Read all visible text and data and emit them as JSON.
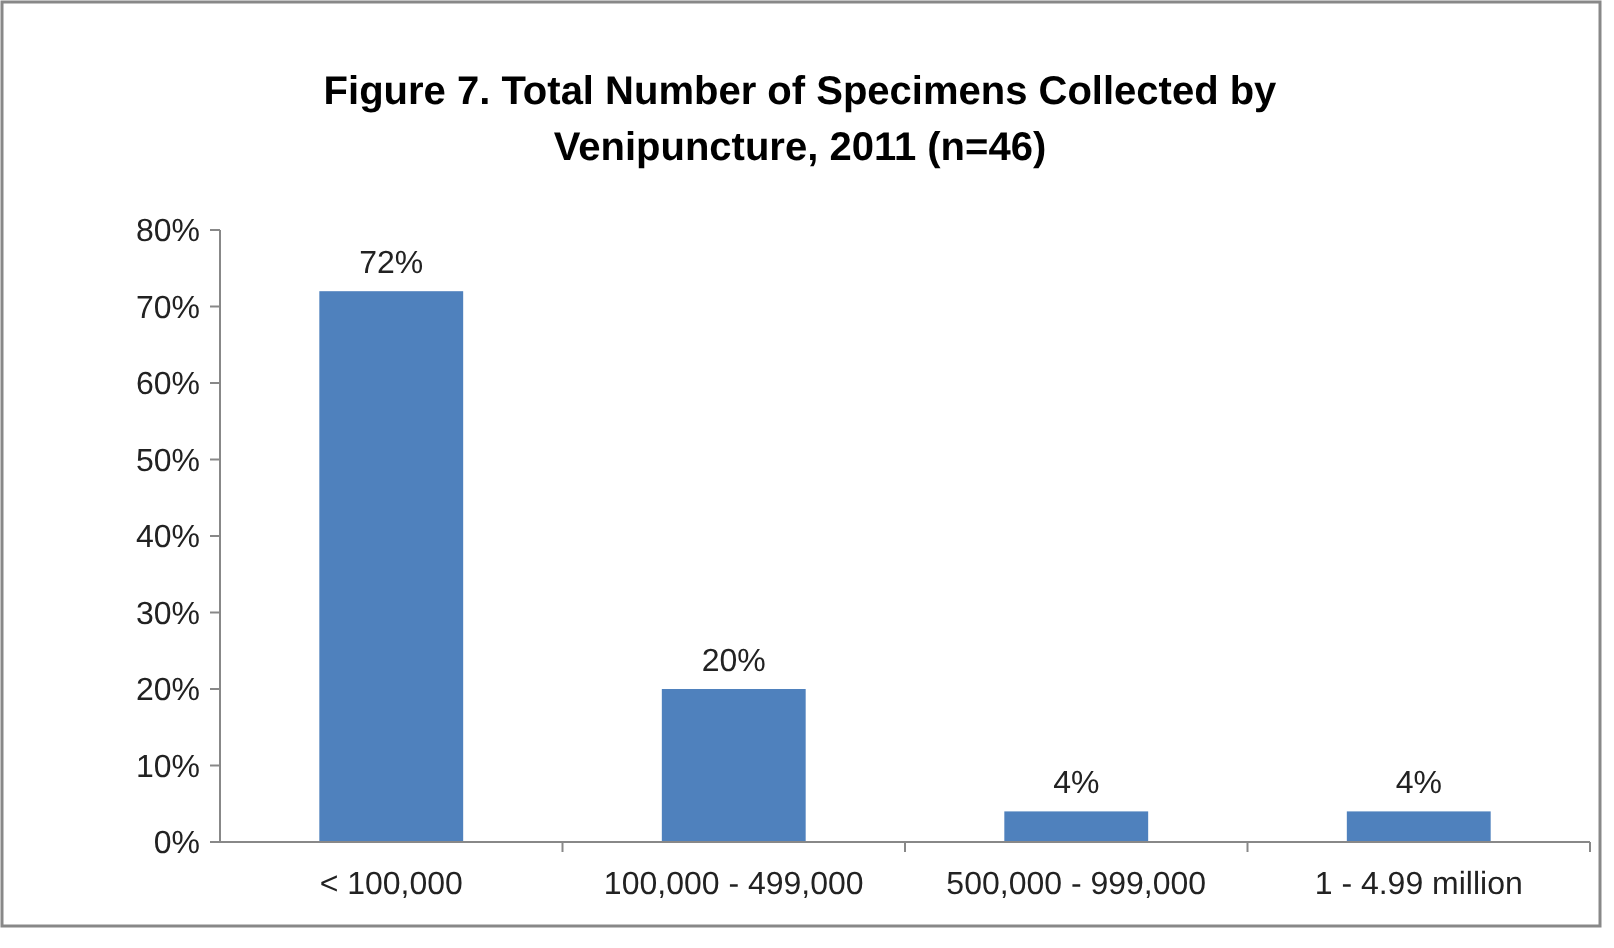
{
  "chart_data": {
    "type": "bar",
    "title": "Figure 7. Total Number of Specimens Collected by Venipuncture, 2011 (n=46)",
    "categories": [
      "< 100,000",
      "100,000 - 499,000",
      "500,000 - 999,000",
      "1 - 4.99 million"
    ],
    "values": [
      72,
      20,
      4,
      4
    ],
    "value_labels": [
      "72%",
      "20%",
      "4%",
      "4%"
    ],
    "color": "#4f81bd",
    "ylim": [
      0,
      80
    ],
    "yticks": [
      {
        "value": 0,
        "label": "0%"
      },
      {
        "value": 10,
        "label": "10%"
      },
      {
        "value": 20,
        "label": "20%"
      },
      {
        "value": 30,
        "label": "30%"
      },
      {
        "value": 40,
        "label": "40%"
      },
      {
        "value": 50,
        "label": "50%"
      },
      {
        "value": 60,
        "label": "60%"
      },
      {
        "value": 70,
        "label": "70%"
      },
      {
        "value": 80,
        "label": "80%"
      }
    ],
    "grid": false
  }
}
